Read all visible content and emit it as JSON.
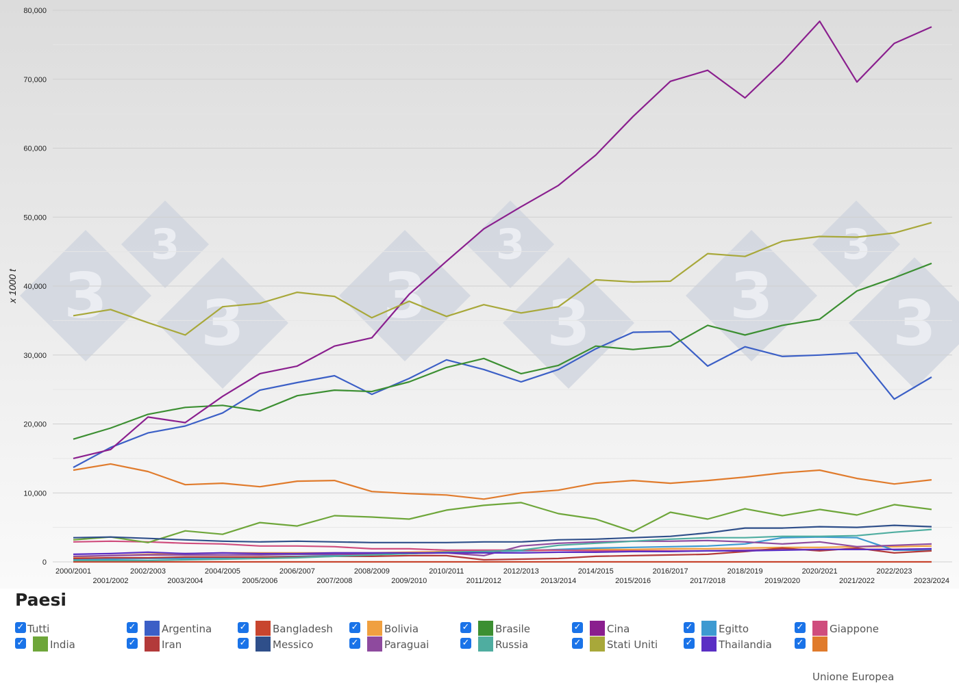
{
  "chart_data": {
    "type": "line",
    "ylabel": "x 1000 t",
    "ylim": [
      0,
      80000
    ],
    "yticks": [
      "0",
      "10,000",
      "20,000",
      "30,000",
      "40,000",
      "50,000",
      "60,000",
      "70,000",
      "80,000"
    ],
    "categories": [
      "2000/2001",
      "2001/2002",
      "2002/2003",
      "2003/2004",
      "2004/2005",
      "2005/2006",
      "2006/2007",
      "2007/2008",
      "2008/2009",
      "2009/2010",
      "2010/2011",
      "2011/2012",
      "2012/2013",
      "2013/2014",
      "2014/2015",
      "2015/2016",
      "2016/2017",
      "2017/2018",
      "2018/2019",
      "2019/2020",
      "2020/2021",
      "2021/2022",
      "2022/2023",
      "2023/2024"
    ],
    "grid": true,
    "series": [
      {
        "name": "Argentina",
        "color": "#3b5fc6",
        "values": [
          13700,
          16600,
          18700,
          19700,
          21600,
          24900,
          26000,
          27000,
          24300,
          26600,
          29300,
          27900,
          26100,
          27900,
          30900,
          33300,
          33400,
          28400,
          31200,
          29800,
          30000,
          30300,
          23600,
          26800
        ]
      },
      {
        "name": "Bangladesh",
        "color": "#c8452e",
        "values": [
          0,
          0,
          0,
          0,
          0,
          0,
          0,
          0,
          0,
          0,
          0,
          0,
          0,
          0,
          0,
          0,
          0,
          0,
          0,
          0,
          0,
          0,
          0,
          0
        ]
      },
      {
        "name": "Bolivia",
        "color": "#f0a040",
        "values": [
          700,
          900,
          1100,
          1200,
          1300,
          1300,
          1300,
          1300,
          1300,
          1400,
          1500,
          1500,
          1600,
          1700,
          1800,
          1800,
          1900,
          1900,
          2000,
          2100,
          2100,
          2200,
          2200,
          2300
        ]
      },
      {
        "name": "Brasile",
        "color": "#3c8f32",
        "values": [
          17800,
          19400,
          21400,
          22400,
          22700,
          21900,
          24100,
          24900,
          24700,
          26100,
          28200,
          29500,
          27300,
          28500,
          31300,
          30800,
          31300,
          34300,
          32900,
          34300,
          35200,
          39300,
          41200,
          43300
        ]
      },
      {
        "name": "Cina",
        "color": "#8a1f8e",
        "values": [
          15000,
          16300,
          21000,
          20200,
          24000,
          27300,
          28400,
          31300,
          32500,
          38800,
          43600,
          48300,
          51500,
          54600,
          59000,
          64600,
          69700,
          71300,
          67300,
          72500,
          78400,
          69600,
          75200,
          77600
        ]
      },
      {
        "name": "Egitto",
        "color": "#3d9ad1",
        "values": [
          300,
          400,
          500,
          500,
          600,
          700,
          800,
          900,
          1100,
          1200,
          1400,
          1500,
          1600,
          1800,
          2000,
          2100,
          2200,
          2300,
          2600,
          3500,
          3600,
          3500,
          1700,
          1700
        ]
      },
      {
        "name": "Giappone",
        "color": "#cf4d7d",
        "values": [
          2900,
          3000,
          2900,
          2700,
          2600,
          2300,
          2300,
          2200,
          1900,
          1900,
          1700,
          1700,
          1700,
          1700,
          1600,
          1600,
          1600,
          1600,
          1700,
          1800,
          1800,
          1800,
          1800,
          1900
        ]
      },
      {
        "name": "India",
        "color": "#6ea63a",
        "values": [
          3200,
          3600,
          2800,
          4500,
          4000,
          5700,
          5200,
          6700,
          6500,
          6200,
          7500,
          8200,
          8600,
          7000,
          6200,
          4400,
          7200,
          6200,
          7700,
          6700,
          7600,
          6800,
          8300,
          7600
        ]
      },
      {
        "name": "Iran",
        "color": "#b33a3a",
        "values": [
          500,
          600,
          600,
          700,
          700,
          700,
          700,
          800,
          800,
          900,
          900,
          300,
          400,
          500,
          800,
          900,
          1000,
          1100,
          1500,
          2000,
          1600,
          2000,
          1300,
          1600
        ]
      },
      {
        "name": "Messico",
        "color": "#2f4f8a",
        "values": [
          3500,
          3600,
          3400,
          3200,
          3000,
          2900,
          3000,
          2900,
          2800,
          2800,
          2800,
          2900,
          2900,
          3200,
          3300,
          3500,
          3700,
          4200,
          4900,
          4900,
          5100,
          5000,
          5300,
          5100
        ]
      },
      {
        "name": "Paraguai",
        "color": "#8e4a9e",
        "values": [
          800,
          900,
          1000,
          1000,
          1000,
          1000,
          1100,
          1100,
          1100,
          1200,
          1300,
          900,
          2300,
          2700,
          2900,
          3000,
          3000,
          3100,
          2900,
          2600,
          2900,
          2200,
          2400,
          2600
        ]
      },
      {
        "name": "Russia",
        "color": "#4fada0",
        "values": [
          200,
          200,
          200,
          300,
          400,
          500,
          600,
          800,
          1000,
          1200,
          1400,
          1500,
          1700,
          2400,
          2700,
          3000,
          3300,
          3500,
          3500,
          3700,
          3700,
          3800,
          4300,
          4700
        ]
      },
      {
        "name": "Stati Uniti",
        "color": "#a8a83a",
        "values": [
          35700,
          36600,
          34700,
          32900,
          37000,
          37500,
          39100,
          38500,
          35400,
          37800,
          35600,
          37300,
          36100,
          37000,
          40900,
          40600,
          40700,
          44700,
          44300,
          46500,
          47200,
          47100,
          47700,
          49200
        ]
      },
      {
        "name": "Thailandia",
        "color": "#5a2fc4",
        "values": [
          1100,
          1200,
          1400,
          1200,
          1300,
          1200,
          1200,
          1300,
          1300,
          1300,
          1300,
          1300,
          1300,
          1400,
          1400,
          1500,
          1500,
          1600,
          1600,
          1700,
          1800,
          1800,
          1800,
          1900
        ]
      },
      {
        "name": "Unione Europea",
        "color": "#e07b2c",
        "values": [
          13300,
          14200,
          13100,
          11200,
          11400,
          10900,
          11700,
          11800,
          10200,
          9900,
          9700,
          9100,
          10000,
          10400,
          11400,
          11800,
          11400,
          11800,
          12300,
          12900,
          13300,
          12100,
          11300,
          11900
        ]
      }
    ]
  },
  "legend": {
    "title": "Paesi",
    "all_label": "Tutti",
    "check_glyph": "✓"
  }
}
